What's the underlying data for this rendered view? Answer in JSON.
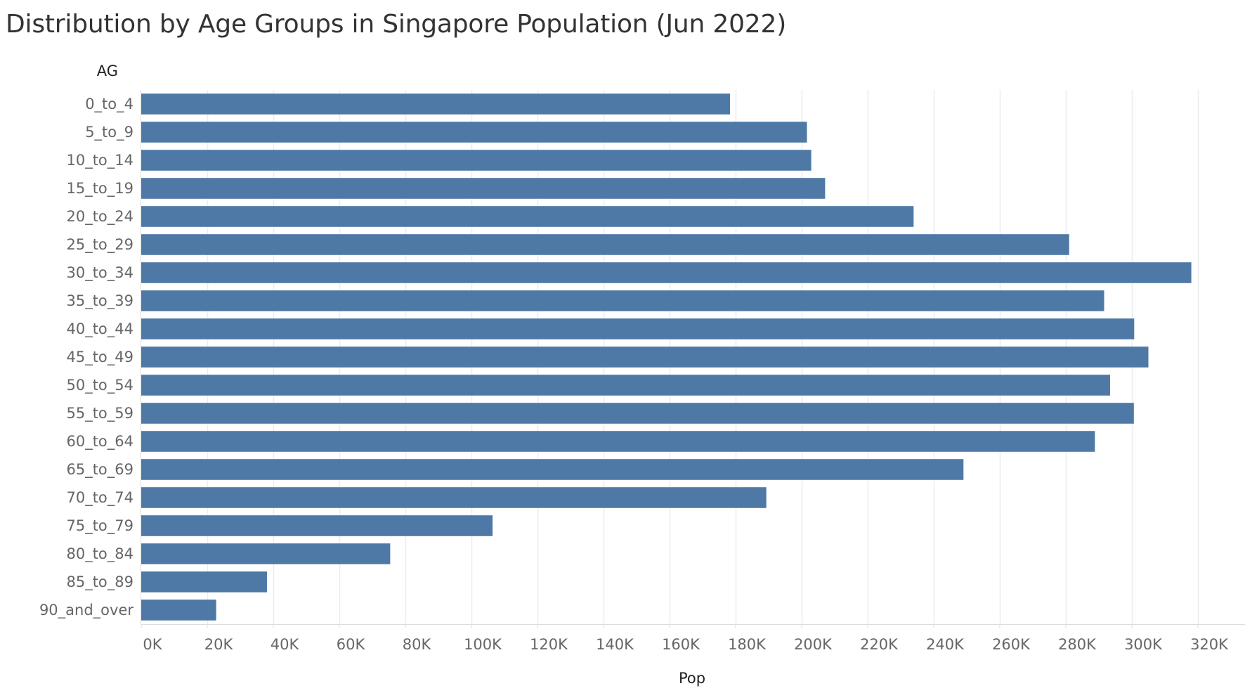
{
  "chart_data": {
    "type": "bar",
    "orientation": "horizontal",
    "title": "Distribution by Age Groups in Singapore Population (Jun 2022)",
    "xlabel": "Pop",
    "ylabel": "AG",
    "categories": [
      "0_to_4",
      "5_to_9",
      "10_to_14",
      "15_to_19",
      "20_to_24",
      "25_to_29",
      "30_to_34",
      "35_to_39",
      "40_to_44",
      "45_to_49",
      "50_to_54",
      "55_to_59",
      "60_to_64",
      "65_to_69",
      "70_to_74",
      "75_to_79",
      "80_to_84",
      "85_to_89",
      "90_and_over"
    ],
    "values": [
      178300,
      201600,
      202900,
      207100,
      233900,
      281000,
      318000,
      291600,
      300700,
      305000,
      293400,
      300600,
      288800,
      249000,
      189300,
      106400,
      75400,
      38100,
      22700
    ],
    "xlim": [
      0,
      330000
    ],
    "xticks": [
      0,
      20000,
      40000,
      60000,
      80000,
      100000,
      120000,
      140000,
      160000,
      180000,
      200000,
      220000,
      240000,
      260000,
      280000,
      300000,
      320000
    ],
    "xtick_labels": [
      "0K",
      "20K",
      "40K",
      "60K",
      "80K",
      "100K",
      "120K",
      "140K",
      "160K",
      "180K",
      "200K",
      "220K",
      "240K",
      "260K",
      "280K",
      "300K",
      "320K"
    ],
    "grid": true,
    "legend": "none",
    "bar_color": "#4e79a7",
    "grid_color": "#ededed",
    "axis_color": "#dddddd"
  }
}
